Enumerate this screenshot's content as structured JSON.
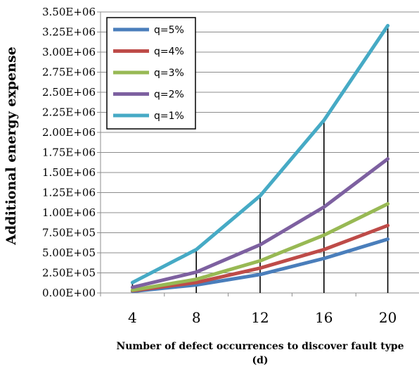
{
  "chart_data": {
    "type": "line",
    "title": "",
    "xlabel_lines": [
      "Number of defect occurrences to discover fault type",
      "(d)"
    ],
    "ylabel": "Additional energy expense",
    "categories": [
      "4",
      "8",
      "12",
      "16",
      "20"
    ],
    "x": [
      4,
      8,
      12,
      16,
      20
    ],
    "ylim": [
      0,
      3500000
    ],
    "yticks": [
      0,
      250000,
      500000,
      750000,
      1000000,
      1250000,
      1500000,
      1750000,
      2000000,
      2250000,
      2500000,
      2750000,
      3000000,
      3250000,
      3500000
    ],
    "ytick_labels": [
      "0.00E+00",
      "2.50E+05",
      "5.00E+05",
      "7.50E+05",
      "1.00E+06",
      "1.25E+06",
      "1.50E+06",
      "1.75E+06",
      "2.00E+06",
      "2.25E+06",
      "2.50E+06",
      "2.75E+06",
      "3.00E+06",
      "3.25E+06",
      "3.50E+06"
    ],
    "grid": "horizontal",
    "legend_position": "top-left",
    "drop_lines": true,
    "series": [
      {
        "name": "q=5%",
        "color": "#4a7ebb",
        "values": [
          20000,
          100000,
          230000,
          430000,
          670000
        ]
      },
      {
        "name": "q=4%",
        "color": "#be4b48",
        "values": [
          28000,
          130000,
          310000,
          540000,
          840000
        ]
      },
      {
        "name": "q=3%",
        "color": "#98b954",
        "values": [
          35000,
          170000,
          400000,
          720000,
          1110000
        ]
      },
      {
        "name": "q=2%",
        "color": "#7d60a0",
        "values": [
          70000,
          260000,
          600000,
          1070000,
          1670000
        ]
      },
      {
        "name": "q=1%",
        "color": "#46aac5",
        "values": [
          130000,
          540000,
          1210000,
          2150000,
          3330000
        ]
      }
    ]
  }
}
